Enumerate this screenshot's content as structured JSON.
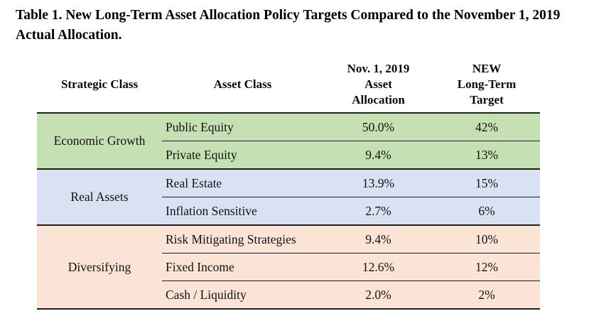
{
  "title": {
    "line1": "Table 1. New Long-Term Asset Allocation Policy Targets Compared to the November 1, 2019",
    "line2": "Actual Allocation."
  },
  "table": {
    "border_color": "#1f1f1f",
    "headers": {
      "strategic_class": "Strategic Class",
      "asset_class": "Asset Class",
      "nov_allocation": "Nov. 1, 2019\nAsset\nAllocation",
      "new_target": "NEW\nLong-Term\nTarget"
    },
    "groups": [
      {
        "name": "Economic Growth",
        "color": "#c5e0b3",
        "rows": [
          {
            "asset": "Public Equity",
            "allocation": "50.0%",
            "target": "42%"
          },
          {
            "asset": "Private Equity",
            "allocation": "9.4%",
            "target": "13%"
          }
        ]
      },
      {
        "name": "Real Assets",
        "color": "#d9e2f3",
        "rows": [
          {
            "asset": "Real Estate",
            "allocation": "13.9%",
            "target": "15%"
          },
          {
            "asset": "Inflation Sensitive",
            "allocation": "2.7%",
            "target": "6%"
          }
        ]
      },
      {
        "name": "Diversifying",
        "color": "#fbe4d5",
        "rows": [
          {
            "asset": "Risk Mitigating Strategies",
            "allocation": "9.4%",
            "target": "10%"
          },
          {
            "asset": "Fixed Income",
            "allocation": "12.6%",
            "target": "12%"
          },
          {
            "asset": "Cash / Liquidity",
            "allocation": "2.0%",
            "target": "2%"
          }
        ]
      }
    ]
  }
}
